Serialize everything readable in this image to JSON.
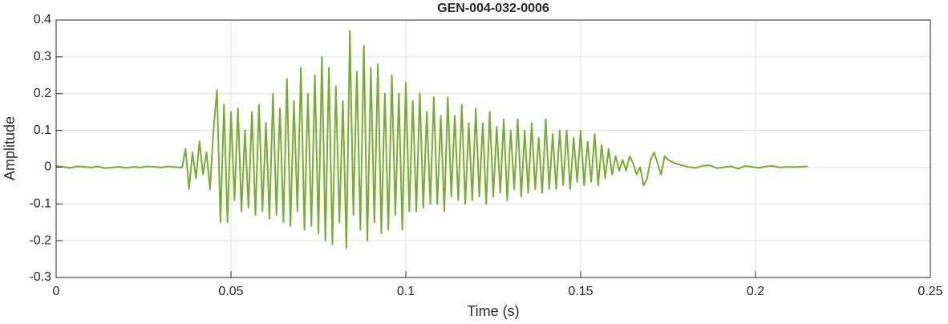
{
  "chart_data": {
    "type": "line",
    "title": "GEN-004-032-0006",
    "xlabel": "Time (s)",
    "ylabel": "Amplitude",
    "color": "#77ac30",
    "grid": true,
    "xlim": [
      0,
      0.25
    ],
    "xticks": [
      0,
      0.05,
      0.1,
      0.15,
      0.2,
      0.25
    ],
    "ylim": [
      -0.3,
      0.4
    ],
    "yticks": [
      -0.3,
      -0.2,
      -0.1,
      0,
      0.1,
      0.2,
      0.3,
      0.4
    ],
    "x": [
      0,
      0.002,
      0.004,
      0.006,
      0.008,
      0.01,
      0.012,
      0.014,
      0.016,
      0.018,
      0.02,
      0.022,
      0.024,
      0.026,
      0.028,
      0.03,
      0.032,
      0.034,
      0.036,
      0.037,
      0.038,
      0.039,
      0.04,
      0.041,
      0.042,
      0.043,
      0.044,
      0.045,
      0.046,
      0.047,
      0.048,
      0.049,
      0.05,
      0.051,
      0.052,
      0.053,
      0.054,
      0.055,
      0.056,
      0.057,
      0.058,
      0.059,
      0.06,
      0.061,
      0.062,
      0.063,
      0.064,
      0.065,
      0.066,
      0.067,
      0.068,
      0.069,
      0.07,
      0.071,
      0.072,
      0.073,
      0.074,
      0.075,
      0.076,
      0.077,
      0.078,
      0.079,
      0.08,
      0.081,
      0.082,
      0.083,
      0.084,
      0.085,
      0.086,
      0.087,
      0.088,
      0.089,
      0.09,
      0.091,
      0.092,
      0.093,
      0.094,
      0.095,
      0.096,
      0.097,
      0.098,
      0.099,
      0.1,
      0.101,
      0.102,
      0.103,
      0.104,
      0.105,
      0.106,
      0.107,
      0.108,
      0.109,
      0.11,
      0.111,
      0.112,
      0.113,
      0.114,
      0.115,
      0.116,
      0.117,
      0.118,
      0.119,
      0.12,
      0.121,
      0.122,
      0.123,
      0.124,
      0.125,
      0.126,
      0.127,
      0.128,
      0.129,
      0.13,
      0.131,
      0.132,
      0.133,
      0.134,
      0.135,
      0.136,
      0.137,
      0.138,
      0.139,
      0.14,
      0.141,
      0.142,
      0.143,
      0.144,
      0.145,
      0.146,
      0.147,
      0.148,
      0.149,
      0.15,
      0.151,
      0.152,
      0.153,
      0.154,
      0.155,
      0.156,
      0.157,
      0.158,
      0.159,
      0.16,
      0.161,
      0.162,
      0.163,
      0.164,
      0.165,
      0.166,
      0.167,
      0.168,
      0.169,
      0.17,
      0.171,
      0.172,
      0.173,
      0.174,
      0.175,
      0.177,
      0.179,
      0.181,
      0.183,
      0.185,
      0.187,
      0.189,
      0.191,
      0.193,
      0.195,
      0.197,
      0.199,
      0.201,
      0.203,
      0.205,
      0.207,
      0.209,
      0.211,
      0.213,
      0.215
    ],
    "values": [
      0.003,
      0.001,
      -0.002,
      0.002,
      0.001,
      -0.001,
      0.002,
      -0.003,
      -0.001,
      0.001,
      -0.002,
      0.001,
      -0.001,
      0.002,
      0.001,
      -0.001,
      0.002,
      0,
      -0.001,
      0.05,
      -0.06,
      0.04,
      -0.03,
      0.07,
      -0.02,
      0.04,
      -0.06,
      0.1,
      0.21,
      -0.15,
      0.17,
      -0.15,
      0.15,
      -0.09,
      0.16,
      -0.12,
      0.1,
      -0.11,
      0.15,
      -0.13,
      0.17,
      -0.12,
      0.12,
      -0.14,
      0.2,
      -0.13,
      0.16,
      -0.15,
      0.24,
      -0.16,
      0.18,
      -0.12,
      0.27,
      -0.17,
      0.2,
      -0.16,
      0.25,
      -0.18,
      0.3,
      -0.2,
      0.27,
      -0.21,
      0.22,
      -0.15,
      0.18,
      -0.22,
      0.37,
      -0.13,
      0.26,
      -0.17,
      0.33,
      -0.2,
      0.27,
      -0.15,
      0.28,
      -0.18,
      0.2,
      -0.17,
      0.25,
      -0.13,
      0.2,
      -0.17,
      0.23,
      -0.12,
      0.18,
      -0.12,
      0.2,
      -0.11,
      0.15,
      -0.1,
      0.19,
      -0.1,
      0.14,
      -0.12,
      0.19,
      -0.08,
      0.14,
      -0.09,
      0.17,
      -0.1,
      0.12,
      -0.09,
      0.16,
      -0.08,
      0.12,
      -0.1,
      0.15,
      -0.08,
      0.11,
      -0.07,
      0.13,
      -0.09,
      0.1,
      -0.06,
      0.13,
      -0.08,
      0.1,
      -0.07,
      0.12,
      -0.06,
      0.08,
      -0.07,
      0.13,
      -0.06,
      0.09,
      -0.06,
      0.1,
      -0.05,
      0.1,
      -0.06,
      0.08,
      -0.04,
      0.1,
      -0.05,
      0.07,
      -0.04,
      0.09,
      -0.05,
      0.06,
      -0.03,
      0.05,
      -0.02,
      0.03,
      -0.01,
      0.02,
      -0.01,
      0.03,
      0.01,
      -0.02,
      0,
      -0.05,
      -0.03,
      0.02,
      0.04,
      0.01,
      -0.02,
      0.03,
      0.02,
      0.01,
      0.005,
      0,
      -0.002,
      0.004,
      0.005,
      -0.003,
      0,
      0.002,
      -0.004,
      0.003,
      0.001,
      -0.002,
      0.002,
      0.003,
      -0.001,
      0.001,
      0,
      0.001,
      0.002
    ]
  }
}
